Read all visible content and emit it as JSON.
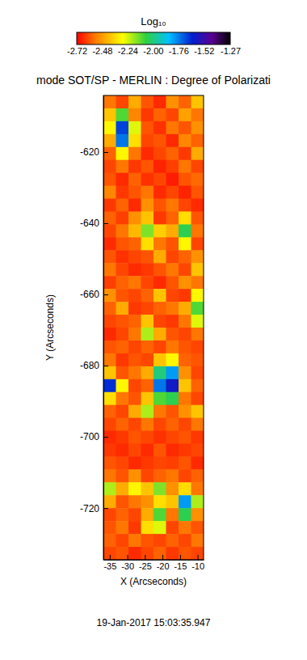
{
  "chart_data": {
    "type": "heatmap",
    "title": "mode SOT/SP - MERLIN : Degree of Polarizati",
    "xlabel": "X (Arcseconds)",
    "ylabel": "Y (Arcseconds)",
    "date": "19-Jan-2017 15:03:35.947",
    "colorbar_label": "Log₁₀",
    "colorbar_range": [
      -2.72,
      -1.27
    ],
    "colorbar_ticks": [
      -2.72,
      -2.48,
      -2.24,
      {
        "value": -2.0,
        "label": "-2.00"
      },
      -1.76,
      -1.52,
      -1.27
    ],
    "xlim": [
      -36.8,
      -8.3
    ],
    "ylim": [
      -734.5,
      -604.1
    ],
    "xticks": [
      -35,
      -30,
      -25,
      -20,
      -15,
      -10
    ],
    "yticks": [
      -620,
      -640,
      -660,
      -680,
      -700,
      -720
    ],
    "x": [
      -35.02,
      -31.46,
      -27.89,
      -24.33,
      -20.77,
      -17.21,
      -13.64,
      -10.08
    ],
    "y": [
      -605.91,
      -609.53,
      -613.16,
      -616.78,
      -620.4,
      -624.02,
      -627.64,
      -631.27,
      -634.89,
      -638.51,
      -642.13,
      -645.76,
      -649.38,
      -653.0,
      -656.62,
      -660.24,
      -663.87,
      -667.49,
      -671.11,
      -674.73,
      -678.36,
      -681.98,
      -685.6,
      -689.22,
      -692.84,
      -696.47,
      -700.09,
      -703.71,
      -707.33,
      -710.96,
      -714.58,
      -718.2,
      -721.82,
      -725.44,
      -729.07,
      -732.69
    ],
    "z": [
      [
        -2.55,
        -2.62,
        -2.45,
        -2.6,
        -2.66,
        -2.5,
        -2.58,
        -2.4
      ],
      [
        -2.4,
        -2.1,
        -2.52,
        -2.64,
        -2.58,
        -2.62,
        -2.47,
        -2.55
      ],
      [
        -2.3,
        -1.68,
        -2.25,
        -2.6,
        -2.65,
        -2.55,
        -2.6,
        -2.5
      ],
      [
        -2.45,
        -1.75,
        -2.35,
        -2.62,
        -2.6,
        -2.66,
        -2.52,
        -2.58
      ],
      [
        -2.58,
        -2.3,
        -2.55,
        -2.66,
        -2.62,
        -2.58,
        -2.64,
        -2.45
      ],
      [
        -2.62,
        -2.55,
        -2.64,
        -2.6,
        -2.67,
        -2.63,
        -2.55,
        -2.62
      ],
      [
        -2.6,
        -2.66,
        -2.58,
        -2.65,
        -2.62,
        -2.68,
        -2.6,
        -2.57
      ],
      [
        -2.52,
        -2.64,
        -2.6,
        -2.55,
        -2.66,
        -2.62,
        -2.67,
        -2.6
      ],
      [
        -2.64,
        -2.58,
        -2.66,
        -2.5,
        -2.6,
        -2.55,
        -2.62,
        -2.66
      ],
      [
        -2.58,
        -2.63,
        -2.5,
        -2.4,
        -2.64,
        -2.58,
        -2.35,
        -2.6
      ],
      [
        -2.62,
        -2.55,
        -2.42,
        -2.15,
        -2.38,
        -2.45,
        -2.05,
        -2.55
      ],
      [
        -2.66,
        -2.6,
        -2.58,
        -2.35,
        -2.55,
        -2.6,
        -2.3,
        -2.62
      ],
      [
        -2.6,
        -2.65,
        -2.62,
        -2.6,
        -2.45,
        -2.62,
        -2.58,
        -2.5
      ],
      [
        -2.55,
        -2.62,
        -2.66,
        -2.64,
        -2.6,
        -2.55,
        -2.62,
        -2.4
      ],
      [
        -2.63,
        -2.58,
        -2.55,
        -2.62,
        -2.66,
        -2.6,
        -2.5,
        -2.55
      ],
      [
        -2.5,
        -2.6,
        -2.62,
        -2.58,
        -2.4,
        -2.62,
        -2.64,
        -2.3
      ],
      [
        -2.58,
        -2.45,
        -2.64,
        -2.62,
        -2.58,
        -2.55,
        -2.45,
        -2.1
      ],
      [
        -2.62,
        -2.6,
        -2.58,
        -2.4,
        -2.62,
        -2.64,
        -2.55,
        -2.25
      ],
      [
        -2.66,
        -2.62,
        -2.55,
        -2.2,
        -2.45,
        -2.6,
        -2.62,
        -2.55
      ],
      [
        -2.6,
        -2.58,
        -2.62,
        -2.58,
        -2.62,
        -2.55,
        -2.6,
        -2.62
      ],
      [
        -2.55,
        -2.64,
        -2.6,
        -2.62,
        -2.4,
        -2.3,
        -2.58,
        -2.6
      ],
      [
        -2.4,
        -2.6,
        -2.55,
        -2.45,
        -2.0,
        -1.8,
        -2.5,
        -2.62
      ],
      [
        -1.65,
        -2.3,
        -2.62,
        -2.58,
        -1.75,
        -1.6,
        -2.4,
        -2.58
      ],
      [
        -2.35,
        -2.55,
        -2.6,
        -2.4,
        -2.1,
        -2.05,
        -2.55,
        -2.62
      ],
      [
        -2.58,
        -2.62,
        -2.45,
        -2.2,
        -2.55,
        -2.6,
        -2.5,
        -2.4
      ],
      [
        -2.62,
        -2.58,
        -2.62,
        -2.55,
        -2.62,
        -2.58,
        -2.62,
        -2.55
      ],
      [
        -2.66,
        -2.64,
        -2.6,
        -2.62,
        -2.65,
        -2.62,
        -2.6,
        -2.64
      ],
      [
        -2.64,
        -2.66,
        -2.62,
        -2.66,
        -2.6,
        -2.66,
        -2.64,
        -2.62
      ],
      [
        -2.6,
        -2.62,
        -2.66,
        -2.64,
        -2.62,
        -2.63,
        -2.6,
        -2.66
      ],
      [
        -2.55,
        -2.6,
        -2.5,
        -2.62,
        -2.58,
        -2.55,
        -2.62,
        -2.58
      ],
      [
        -2.2,
        -2.45,
        -2.3,
        -2.4,
        -2.15,
        -2.5,
        -2.35,
        -2.55
      ],
      [
        -2.45,
        -2.6,
        -2.55,
        -2.5,
        -2.35,
        -2.4,
        -1.8,
        -2.2
      ],
      [
        -2.62,
        -2.58,
        -2.62,
        -2.45,
        -2.1,
        -2.55,
        -2.05,
        -2.5
      ],
      [
        -2.6,
        -2.55,
        -2.64,
        -2.35,
        -2.25,
        -2.62,
        -2.55,
        -2.6
      ],
      [
        -2.58,
        -2.62,
        -2.55,
        -2.6,
        -2.62,
        -2.58,
        -2.62,
        -2.55
      ],
      [
        -2.62,
        -2.6,
        -2.66,
        -2.62,
        -2.58,
        -2.64,
        -2.6,
        -2.62
      ]
    ]
  }
}
